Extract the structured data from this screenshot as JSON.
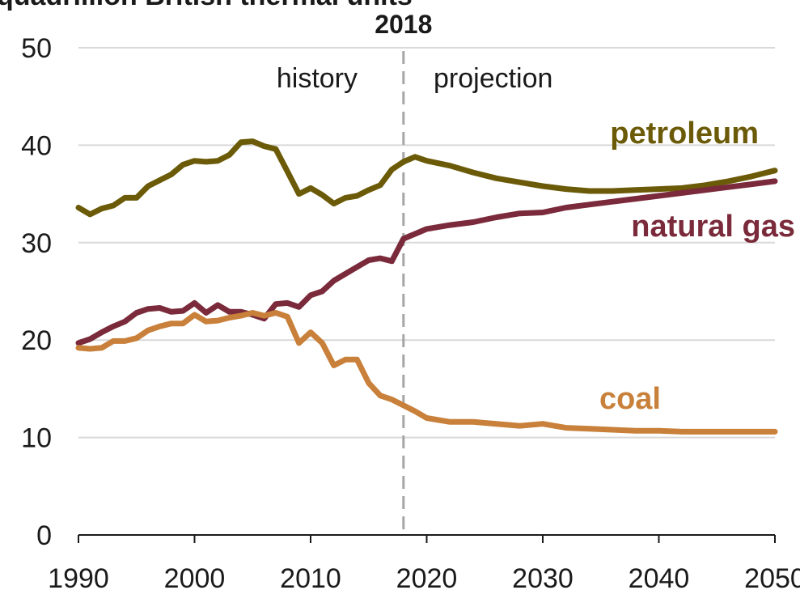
{
  "chart_data": {
    "type": "line",
    "title": "",
    "unit_label": "quadrillion British thermal units",
    "xlabel": "",
    "ylabel": "",
    "xlim": [
      1990,
      2050
    ],
    "ylim": [
      0,
      50
    ],
    "x_ticks": [
      1990,
      2000,
      2010,
      2020,
      2030,
      2040,
      2050
    ],
    "x_tick_labels": [
      "1990",
      "2000",
      "2010",
      "2020",
      "2030",
      "2040",
      "2050"
    ],
    "y_ticks": [
      0,
      10,
      20,
      30,
      40,
      50
    ],
    "y_tick_labels": [
      "0",
      "10",
      "20",
      "30",
      "40",
      "50"
    ],
    "grid": "horizontal",
    "divider": {
      "x": 2018,
      "label": "2018",
      "left_label": "history",
      "right_label": "projection"
    },
    "series": [
      {
        "name": "petroleum",
        "color": "#6b5a07",
        "x": [
          1990,
          1991,
          1992,
          1993,
          1994,
          1995,
          1996,
          1997,
          1998,
          1999,
          2000,
          2001,
          2002,
          2003,
          2004,
          2005,
          2006,
          2007,
          2008,
          2009,
          2010,
          2011,
          2012,
          2013,
          2014,
          2015,
          2016,
          2017,
          2018,
          2019,
          2020,
          2022,
          2024,
          2026,
          2028,
          2030,
          2032,
          2034,
          2036,
          2038,
          2040,
          2042,
          2044,
          2046,
          2048,
          2050
        ],
        "y": [
          33.6,
          32.9,
          33.5,
          33.8,
          34.6,
          34.6,
          35.8,
          36.4,
          37.0,
          38.0,
          38.4,
          38.3,
          38.4,
          39.0,
          40.3,
          40.4,
          39.9,
          39.6,
          37.3,
          35.0,
          35.6,
          34.9,
          34.0,
          34.6,
          34.8,
          35.4,
          35.9,
          37.5,
          38.3,
          38.8,
          38.4,
          37.9,
          37.2,
          36.6,
          36.2,
          35.8,
          35.5,
          35.3,
          35.3,
          35.4,
          35.5,
          35.6,
          35.9,
          36.3,
          36.8,
          37.4
        ]
      },
      {
        "name": "natural gas",
        "color": "#7a2a3a",
        "x": [
          1990,
          1991,
          1992,
          1993,
          1994,
          1995,
          1996,
          1997,
          1998,
          1999,
          2000,
          2001,
          2002,
          2003,
          2004,
          2005,
          2006,
          2007,
          2008,
          2009,
          2010,
          2011,
          2012,
          2013,
          2014,
          2015,
          2016,
          2017,
          2018,
          2019,
          2020,
          2022,
          2024,
          2026,
          2028,
          2030,
          2032,
          2034,
          2036,
          2038,
          2040,
          2042,
          2044,
          2046,
          2048,
          2050
        ],
        "y": [
          19.7,
          20.1,
          20.8,
          21.4,
          21.9,
          22.8,
          23.2,
          23.3,
          22.9,
          23.0,
          23.8,
          22.8,
          23.6,
          22.9,
          22.9,
          22.6,
          22.2,
          23.7,
          23.8,
          23.4,
          24.6,
          25.0,
          26.1,
          26.8,
          27.5,
          28.2,
          28.4,
          28.1,
          30.4,
          30.9,
          31.4,
          31.8,
          32.1,
          32.6,
          33.0,
          33.1,
          33.6,
          33.9,
          34.2,
          34.5,
          34.8,
          35.1,
          35.4,
          35.7,
          36.0,
          36.3
        ]
      },
      {
        "name": "coal",
        "color": "#c8803a",
        "x": [
          1990,
          1991,
          1992,
          1993,
          1994,
          1995,
          1996,
          1997,
          1998,
          1999,
          2000,
          2001,
          2002,
          2003,
          2004,
          2005,
          2006,
          2007,
          2008,
          2009,
          2010,
          2011,
          2012,
          2013,
          2014,
          2015,
          2016,
          2017,
          2018,
          2019,
          2020,
          2022,
          2024,
          2026,
          2028,
          2030,
          2032,
          2034,
          2036,
          2038,
          2040,
          2042,
          2044,
          2046,
          2048,
          2050
        ],
        "y": [
          19.2,
          19.1,
          19.2,
          19.9,
          19.9,
          20.2,
          21.0,
          21.4,
          21.7,
          21.7,
          22.6,
          21.9,
          22.0,
          22.3,
          22.5,
          22.8,
          22.5,
          22.8,
          22.4,
          19.7,
          20.8,
          19.7,
          17.4,
          18.0,
          18.0,
          15.6,
          14.3,
          13.9,
          13.3,
          12.7,
          12.0,
          11.6,
          11.6,
          11.4,
          11.2,
          11.4,
          11.0,
          10.9,
          10.8,
          10.7,
          10.7,
          10.6,
          10.6,
          10.6,
          10.6,
          10.6
        ]
      }
    ]
  }
}
